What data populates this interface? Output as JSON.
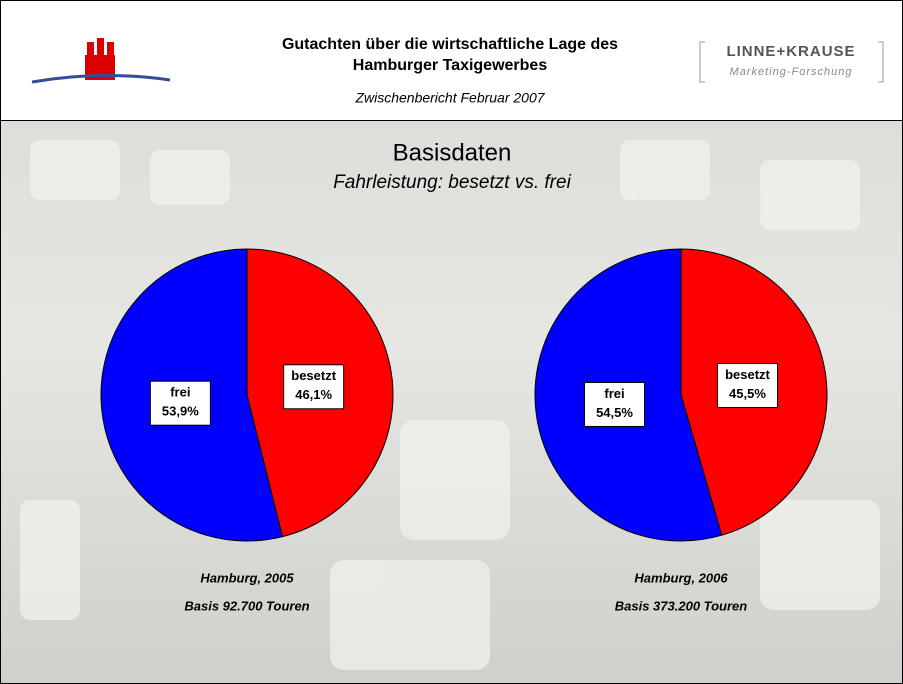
{
  "header": {
    "title_lines": [
      "Gutachten über die wirtschaftliche Lage des",
      "Hamburger Taxigewerbes"
    ],
    "subtitle": "Zwischenbericht Februar 2007",
    "logo_name": "LINNE+KRAUSE",
    "logo_tagline": "Marketing-Forschung"
  },
  "slide": {
    "title": "Basisdaten",
    "subtitle": "Fahrleistung: besetzt vs. frei"
  },
  "chart_data": [
    {
      "type": "pie",
      "title": "Hamburg, 2005",
      "subtitle": "Basis 92.700 Touren",
      "categories": [
        "besetzt",
        "frei"
      ],
      "values": [
        46.1,
        53.9
      ],
      "value_labels": [
        "46,1%",
        "53,9%"
      ],
      "colors": [
        "#ff0000",
        "#0000ff"
      ]
    },
    {
      "type": "pie",
      "title": "Hamburg, 2006",
      "subtitle": "Basis 373.200 Touren",
      "categories": [
        "besetzt",
        "frei"
      ],
      "values": [
        45.5,
        54.5
      ],
      "value_labels": [
        "45,5%",
        "54,5%"
      ],
      "colors": [
        "#ff0000",
        "#0000ff"
      ]
    }
  ]
}
